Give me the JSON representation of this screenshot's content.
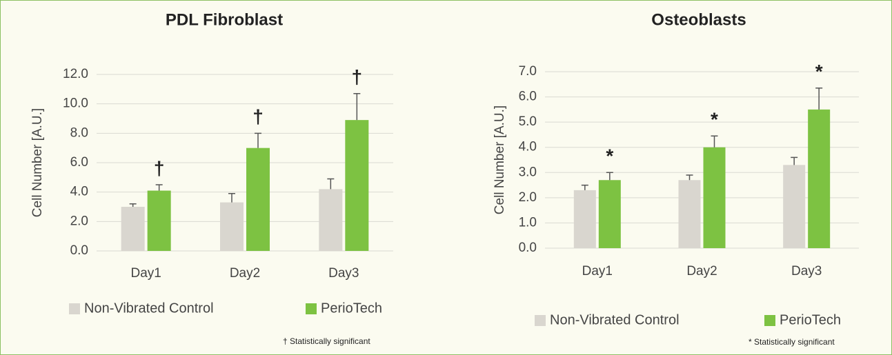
{
  "chart_data": [
    {
      "type": "bar",
      "title": "PDL Fibroblast",
      "y_label": "Cell Number [A.U.]",
      "categories": [
        "Day1",
        "Day2",
        "Day3"
      ],
      "series": [
        {
          "name": "Non-Vibrated Control",
          "color": "#d9d6cf",
          "values": [
            3.0,
            3.3,
            4.2
          ],
          "errors": [
            0.2,
            0.6,
            0.7
          ]
        },
        {
          "name": "PerioTech",
          "color": "#7dc242",
          "values": [
            4.1,
            7.0,
            8.9
          ],
          "errors": [
            0.4,
            1.0,
            1.8
          ],
          "markers": [
            "†",
            "†",
            "†"
          ]
        }
      ],
      "ylim": [
        0,
        12
      ],
      "yticks": [
        {
          "value": 0,
          "label": "0.0"
        },
        {
          "value": 2,
          "label": "2.0"
        },
        {
          "value": 4,
          "label": "4.0"
        },
        {
          "value": 6,
          "label": "6.0"
        },
        {
          "value": 8,
          "label": "8.0"
        },
        {
          "value": 10,
          "label": "10.0"
        },
        {
          "value": 12,
          "label": "12.0"
        }
      ],
      "grid": true,
      "legend": "bottom",
      "footnote": "† Statistically significant"
    },
    {
      "type": "bar",
      "title": "Osteoblasts",
      "y_label": "Cell Number [A.U.]",
      "categories": [
        "Day1",
        "Day2",
        "Day3"
      ],
      "series": [
        {
          "name": "Non-Vibrated Control",
          "color": "#d9d6cf",
          "values": [
            2.3,
            2.7,
            3.3
          ],
          "errors": [
            0.2,
            0.2,
            0.3
          ]
        },
        {
          "name": "PerioTech",
          "color": "#7dc242",
          "values": [
            2.7,
            4.0,
            5.5
          ],
          "errors": [
            0.3,
            0.45,
            0.85
          ],
          "markers": [
            "*",
            "*",
            "*"
          ]
        }
      ],
      "ylim": [
        0,
        7
      ],
      "yticks": [
        {
          "value": 0,
          "label": "0.0"
        },
        {
          "value": 1,
          "label": "1.0"
        },
        {
          "value": 2,
          "label": "2.0"
        },
        {
          "value": 3,
          "label": "3.0"
        },
        {
          "value": 4,
          "label": "4.0"
        },
        {
          "value": 5,
          "label": "5.0"
        },
        {
          "value": 6,
          "label": "6.0"
        },
        {
          "value": 7,
          "label": "7.0"
        }
      ],
      "grid": true,
      "legend": "bottom",
      "footnote": "* Statistically significant"
    }
  ]
}
